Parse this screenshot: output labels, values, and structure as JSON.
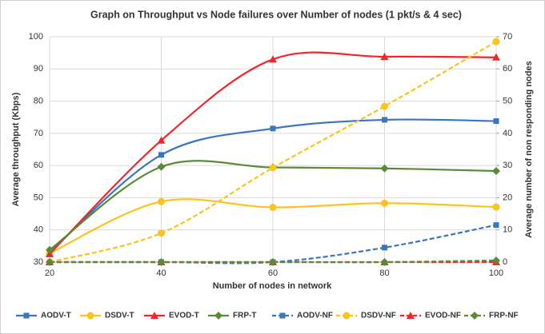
{
  "chart_data": {
    "type": "line",
    "title": "Graph on Throughput vs Node failures over Number of nodes (1 pkt/s & 4 sec)",
    "x_label": "Number of nodes in network",
    "y_label": "Average throughput (Kbps)",
    "y2_label": "Average number of non responding nodes",
    "x": [
      20,
      40,
      60,
      80,
      100
    ],
    "xlim": [
      20,
      100
    ],
    "xticks": [
      20,
      40,
      60,
      80,
      100
    ],
    "ylim": [
      30,
      100
    ],
    "yticks": [
      30,
      40,
      50,
      60,
      70,
      80,
      90,
      100
    ],
    "y2lim": [
      0,
      70
    ],
    "y2ticks": [
      0,
      10,
      20,
      30,
      40,
      50,
      60,
      70
    ],
    "grid": true,
    "smooth": true,
    "legend": "bottom",
    "series": [
      {
        "name": "AODV-T",
        "color": "#3a76c0",
        "marker": "square",
        "dashed": false,
        "values": [
          33,
          63.3,
          71.5,
          74.2,
          73.8
        ]
      },
      {
        "name": "DSDV-T",
        "color": "#fcc31c",
        "marker": "circle",
        "dashed": false,
        "values": [
          32.7,
          48.8,
          47,
          48.3,
          47.1
        ]
      },
      {
        "name": "EVOD-T",
        "color": "#f4242a",
        "marker": "triangle",
        "dashed": false,
        "values": [
          32.5,
          67.8,
          93,
          93.8,
          93.6
        ]
      },
      {
        "name": "FRP-T",
        "color": "#5a8a36",
        "marker": "diamond",
        "dashed": false,
        "values": [
          33.8,
          59.6,
          59.4,
          59.1,
          58.3
        ]
      },
      {
        "name": "AODV-NF",
        "color": "#3a76c0",
        "marker": "square",
        "dashed": true,
        "axis": "y2",
        "values": [
          0,
          0,
          0,
          4.5,
          11.5
        ]
      },
      {
        "name": "DSDV-NF",
        "color": "#fcc31c",
        "marker": "circle",
        "dashed": true,
        "axis": "y2",
        "values": [
          0,
          9,
          29.3,
          48.4,
          68.5
        ]
      },
      {
        "name": "EVOD-NF",
        "color": "#f4242a",
        "marker": "triangle",
        "dashed": true,
        "axis": "y2",
        "values": [
          0,
          0,
          0,
          0,
          0
        ]
      },
      {
        "name": "FRP-NF",
        "color": "#5a8a36",
        "marker": "diamond",
        "dashed": true,
        "axis": "y2",
        "values": [
          0,
          0,
          0,
          0,
          0.5
        ]
      }
    ]
  }
}
